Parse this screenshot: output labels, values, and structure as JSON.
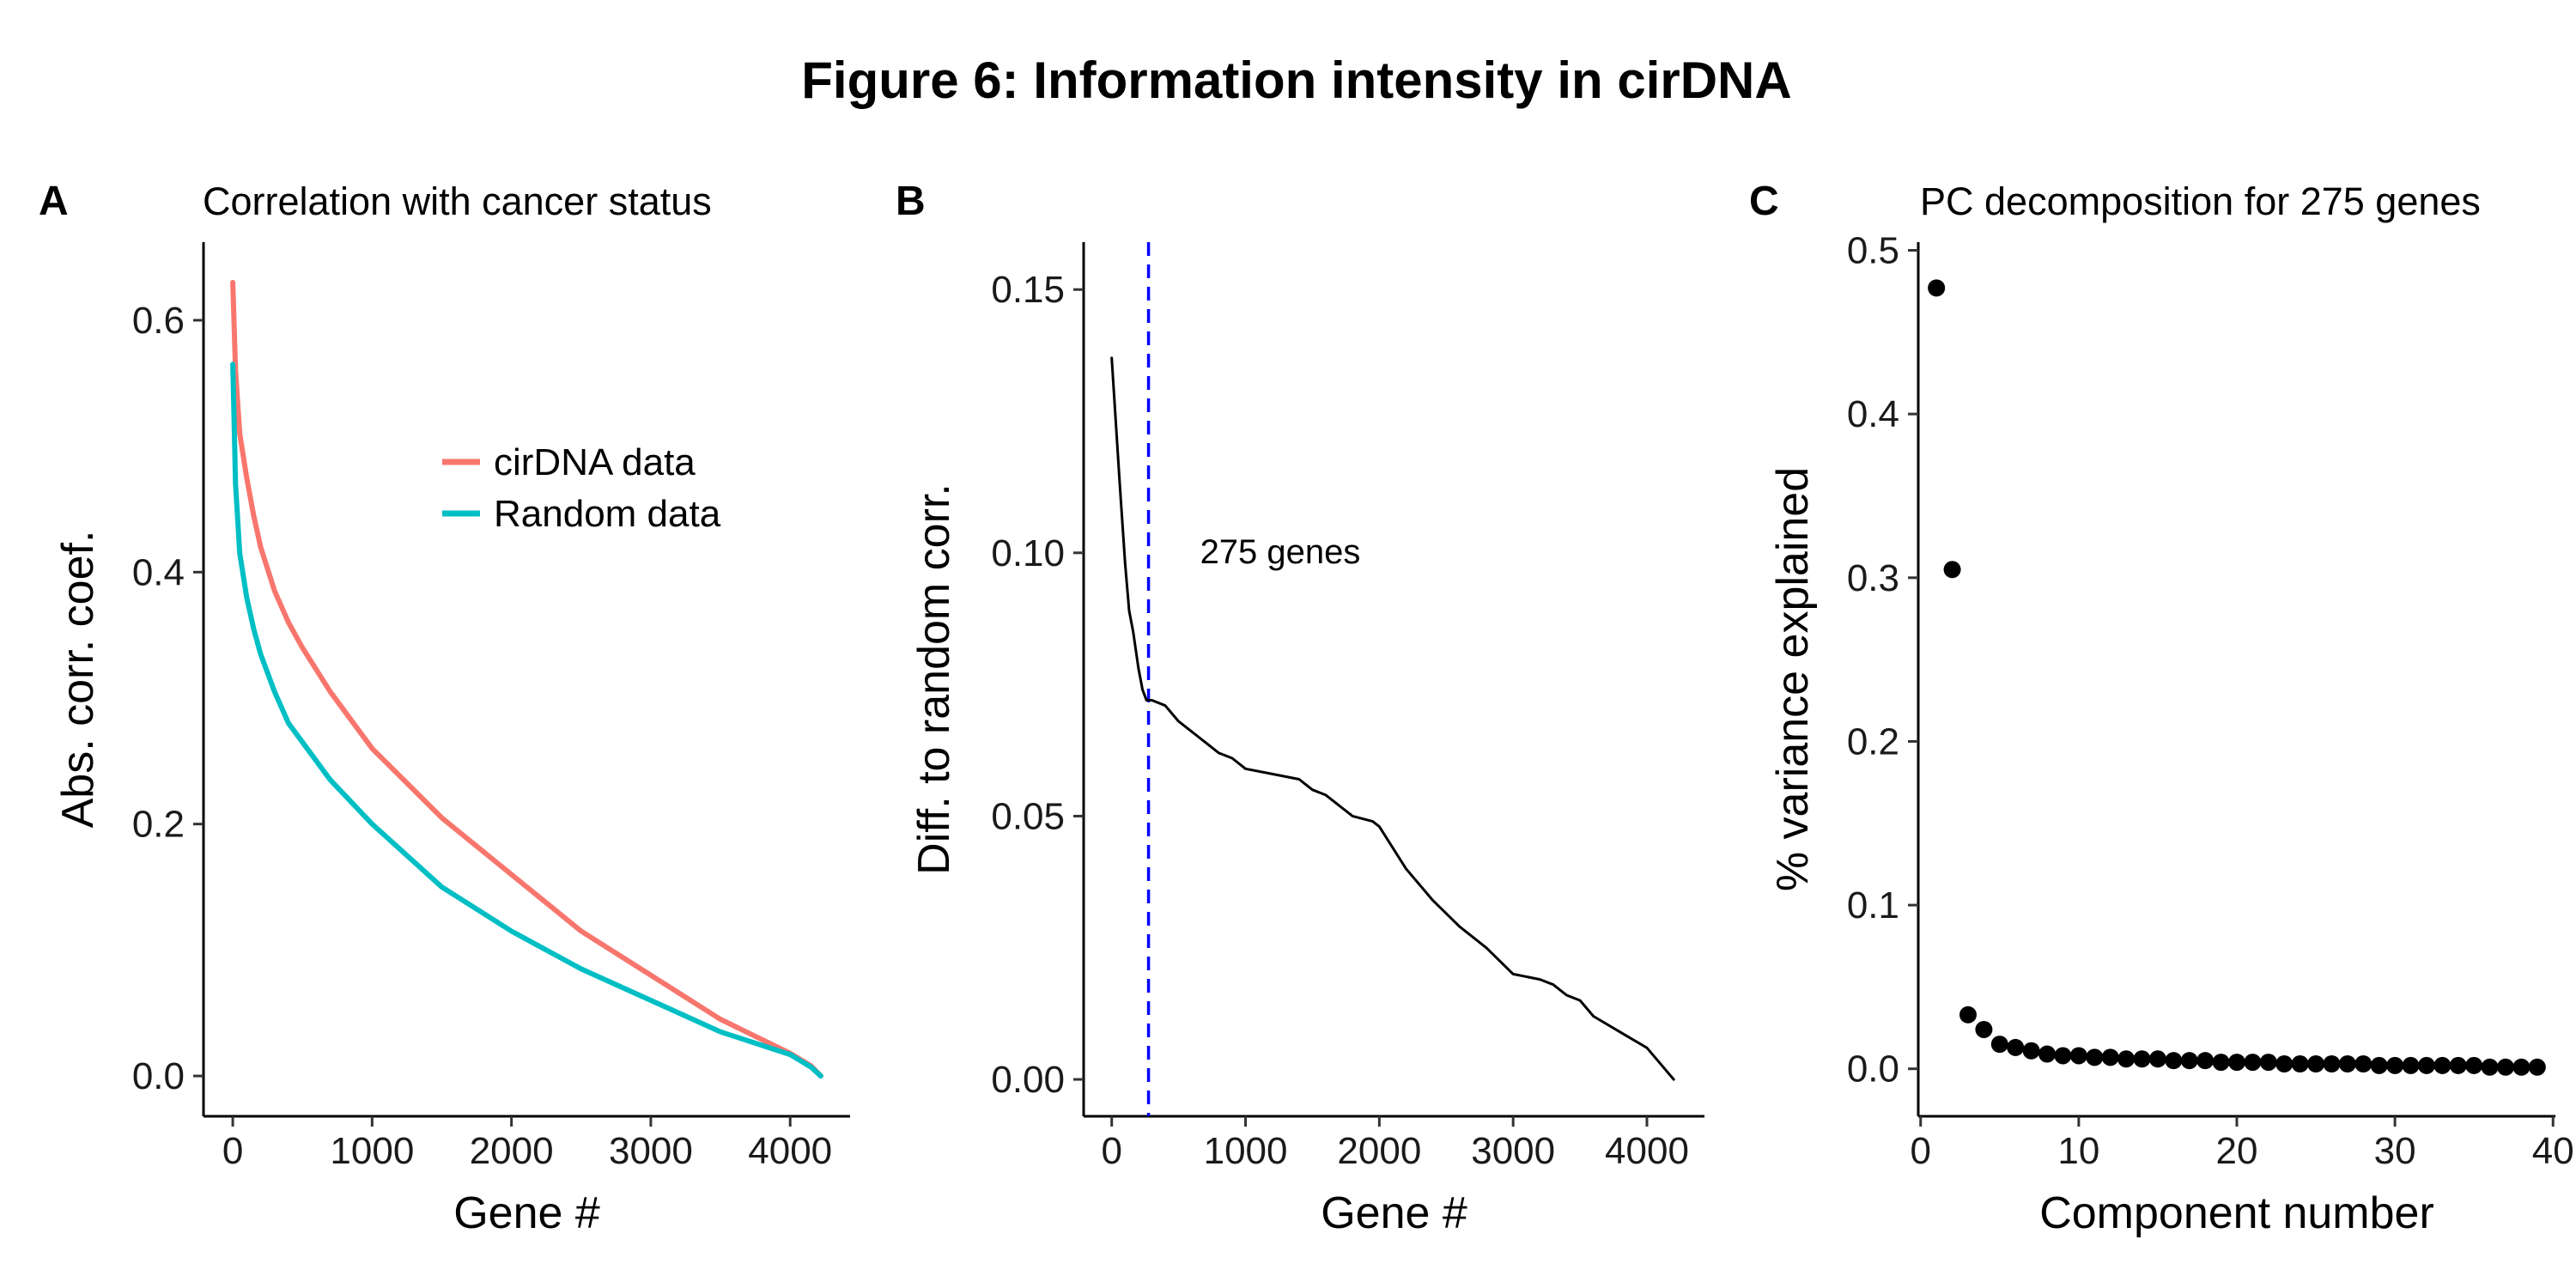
{
  "figure_title": "Figure 6: Information intensity in cirDNA",
  "colors": {
    "cirdna": "#F8766D",
    "random": "#00BFC4",
    "diff": "#000000",
    "marker": "#0000FF",
    "points": "#000000"
  },
  "chart_data": [
    {
      "type": "line",
      "panel_label": "A",
      "title": "Correlation with cancer status",
      "xlabel": "Gene #",
      "ylabel": "Abs. corr. coef.",
      "xlim": [
        -210,
        4430
      ],
      "ylim": [
        -0.032,
        0.662
      ],
      "x_ticks": [
        0,
        1000,
        2000,
        3000,
        4000
      ],
      "y_ticks": [
        0.0,
        0.2,
        0.4,
        0.6
      ],
      "x_tick_labels": [
        "0",
        "1000",
        "2000",
        "3000",
        "4000"
      ],
      "y_tick_labels": [
        "0.0",
        "0.2",
        "0.4",
        "0.6"
      ],
      "grid": false,
      "legend_position": "upper-right inside",
      "series": [
        {
          "name": "cirDNA data",
          "color": "#F8766D",
          "x": [
            0,
            20,
            50,
            100,
            150,
            200,
            300,
            400,
            500,
            700,
            1000,
            1500,
            2000,
            2500,
            3000,
            3500,
            4000,
            4150,
            4220
          ],
          "y": [
            0.63,
            0.56,
            0.51,
            0.475,
            0.445,
            0.42,
            0.385,
            0.36,
            0.34,
            0.305,
            0.26,
            0.205,
            0.16,
            0.115,
            0.08,
            0.045,
            0.018,
            0.008,
            0.0
          ]
        },
        {
          "name": "Random data",
          "color": "#00BFC4",
          "x": [
            0,
            20,
            50,
            100,
            150,
            200,
            300,
            400,
            500,
            700,
            1000,
            1500,
            2000,
            2500,
            3000,
            3500,
            4000,
            4150,
            4220
          ],
          "y": [
            0.565,
            0.47,
            0.415,
            0.38,
            0.355,
            0.335,
            0.305,
            0.28,
            0.265,
            0.235,
            0.2,
            0.15,
            0.115,
            0.085,
            0.06,
            0.035,
            0.017,
            0.007,
            0.0
          ]
        }
      ]
    },
    {
      "type": "line",
      "panel_label": "B",
      "title": "",
      "xlabel": "Gene #",
      "ylabel": "Diff. to random corr.",
      "xlim": [
        -210,
        4430
      ],
      "ylim": [
        -0.007,
        0.159
      ],
      "x_ticks": [
        0,
        1000,
        2000,
        3000,
        4000
      ],
      "y_ticks": [
        0.0,
        0.05,
        0.1,
        0.15
      ],
      "x_tick_labels": [
        "0",
        "1000",
        "2000",
        "3000",
        "4000"
      ],
      "y_tick_labels": [
        "0.00",
        "0.05",
        "0.10",
        "0.15"
      ],
      "grid": false,
      "reference_line": {
        "x": 275,
        "style": "dashed",
        "color": "#0000FF",
        "label": "275 genes"
      },
      "series": [
        {
          "x": [
            0,
            30,
            60,
            100,
            130,
            160,
            200,
            230,
            260,
            275,
            300,
            400,
            500,
            600,
            700,
            800,
            900,
            1000,
            1200,
            1400,
            1500,
            1600,
            1800,
            1950,
            2000,
            2100,
            2200,
            2400,
            2600,
            2800,
            3000,
            3200,
            3300,
            3400,
            3500,
            3600,
            3800,
            4000,
            4100,
            4200
          ],
          "y": [
            0.137,
            0.125,
            0.113,
            0.098,
            0.089,
            0.085,
            0.078,
            0.074,
            0.072,
            0.072,
            0.072,
            0.071,
            0.068,
            0.066,
            0.064,
            0.062,
            0.061,
            0.059,
            0.058,
            0.057,
            0.055,
            0.054,
            0.05,
            0.049,
            0.048,
            0.044,
            0.04,
            0.034,
            0.029,
            0.025,
            0.02,
            0.019,
            0.018,
            0.016,
            0.015,
            0.012,
            0.009,
            0.006,
            0.003,
            0.0
          ]
        }
      ]
    },
    {
      "type": "scatter",
      "panel_label": "C",
      "title": "PC decomposition for 275 genes",
      "xlabel": "Component number",
      "ylabel": "% variance explained",
      "xlim": [
        -0.15,
        40.15
      ],
      "ylim": [
        -0.029,
        0.505
      ],
      "x_ticks": [
        0,
        10,
        20,
        30,
        40
      ],
      "y_ticks": [
        0.0,
        0.1,
        0.2,
        0.3,
        0.4,
        0.5
      ],
      "x_tick_labels": [
        "0",
        "10",
        "20",
        "30",
        "40"
      ],
      "y_tick_labels": [
        "0.0",
        "0.1",
        "0.2",
        "0.3",
        "0.4",
        "0.5"
      ],
      "grid": false,
      "series": [
        {
          "x": [
            1,
            2,
            3,
            4,
            5,
            6,
            7,
            8,
            9,
            10,
            11,
            12,
            13,
            14,
            15,
            16,
            17,
            18,
            19,
            20,
            21,
            22,
            23,
            24,
            25,
            26,
            27,
            28,
            29,
            30,
            31,
            32,
            33,
            34,
            35,
            36,
            37,
            38,
            39
          ],
          "y": [
            0.477,
            0.305,
            0.033,
            0.024,
            0.015,
            0.013,
            0.011,
            0.009,
            0.008,
            0.008,
            0.007,
            0.007,
            0.006,
            0.006,
            0.006,
            0.005,
            0.005,
            0.005,
            0.004,
            0.004,
            0.004,
            0.004,
            0.003,
            0.003,
            0.003,
            0.003,
            0.003,
            0.003,
            0.002,
            0.002,
            0.002,
            0.002,
            0.002,
            0.002,
            0.002,
            0.001,
            0.001,
            0.001,
            0.001
          ]
        }
      ]
    }
  ]
}
